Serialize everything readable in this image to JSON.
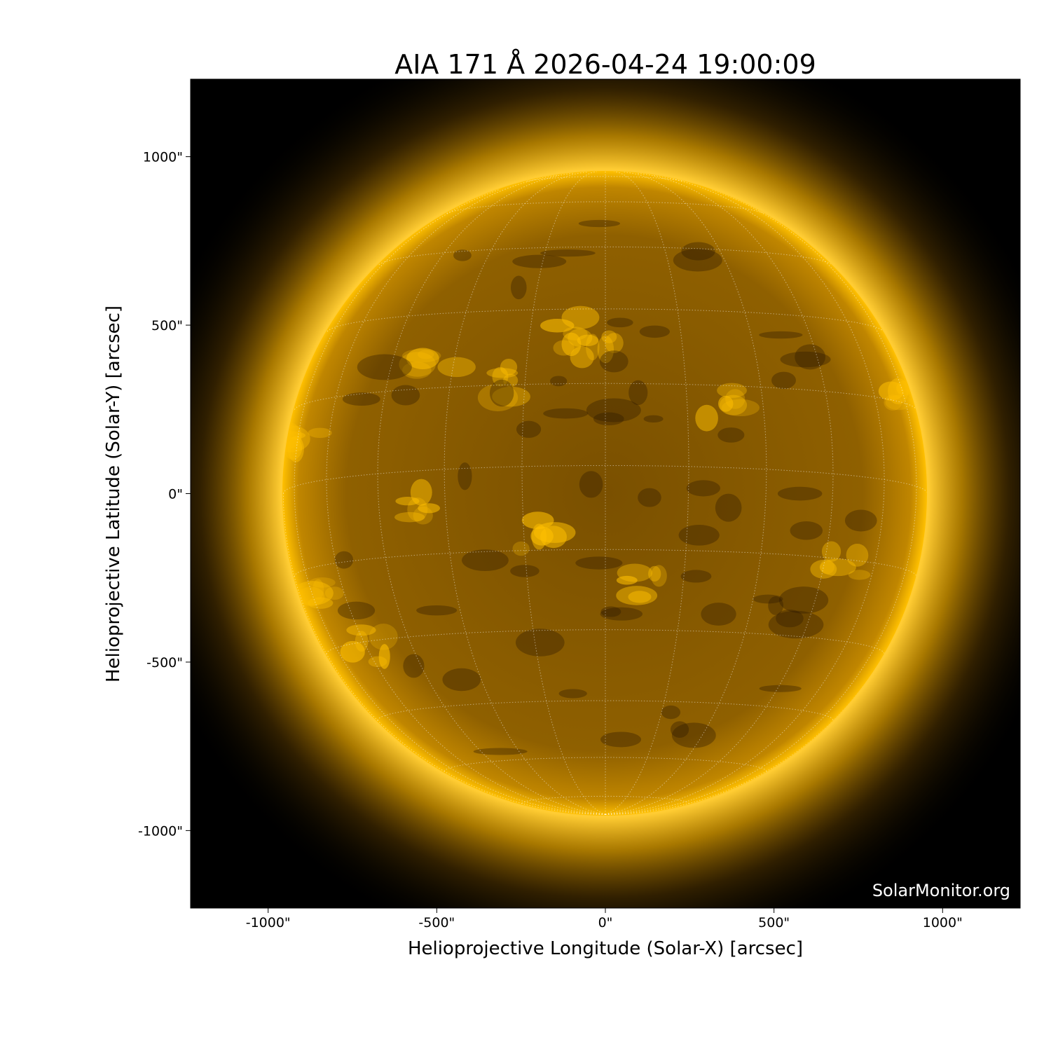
{
  "title": "AIA 171 Å 2026-04-24 19:00:09",
  "watermark": "SolarMonitor.org",
  "x_axis": {
    "label": "Helioprojective Longitude (Solar-X) [arcsec]",
    "range": [
      -1230,
      1230
    ],
    "ticks": [
      {
        "value": -1000,
        "label": "-1000\""
      },
      {
        "value": -500,
        "label": "-500\""
      },
      {
        "value": 0,
        "label": "0\""
      },
      {
        "value": 500,
        "label": "500\""
      },
      {
        "value": 1000,
        "label": "1000\""
      }
    ]
  },
  "y_axis": {
    "label": "Helioprojective Latitude (Solar-Y) [arcsec]",
    "range": [
      -1230,
      1230
    ],
    "ticks": [
      {
        "value": 1000,
        "label": "1000\""
      },
      {
        "value": 500,
        "label": "500\""
      },
      {
        "value": 0,
        "label": "0\""
      },
      {
        "value": -500,
        "label": "-500\""
      },
      {
        "value": -1000,
        "label": "-1000\""
      }
    ]
  },
  "image": {
    "wavelength": "171 Å",
    "solar_radius_arcsec": 955,
    "grid_spacing_deg": 15,
    "colors": {
      "background": "#000000",
      "disk": "#8a5c00",
      "bright": "#ffc000",
      "corona": "#e0a000",
      "grid": "#ffffff"
    }
  }
}
